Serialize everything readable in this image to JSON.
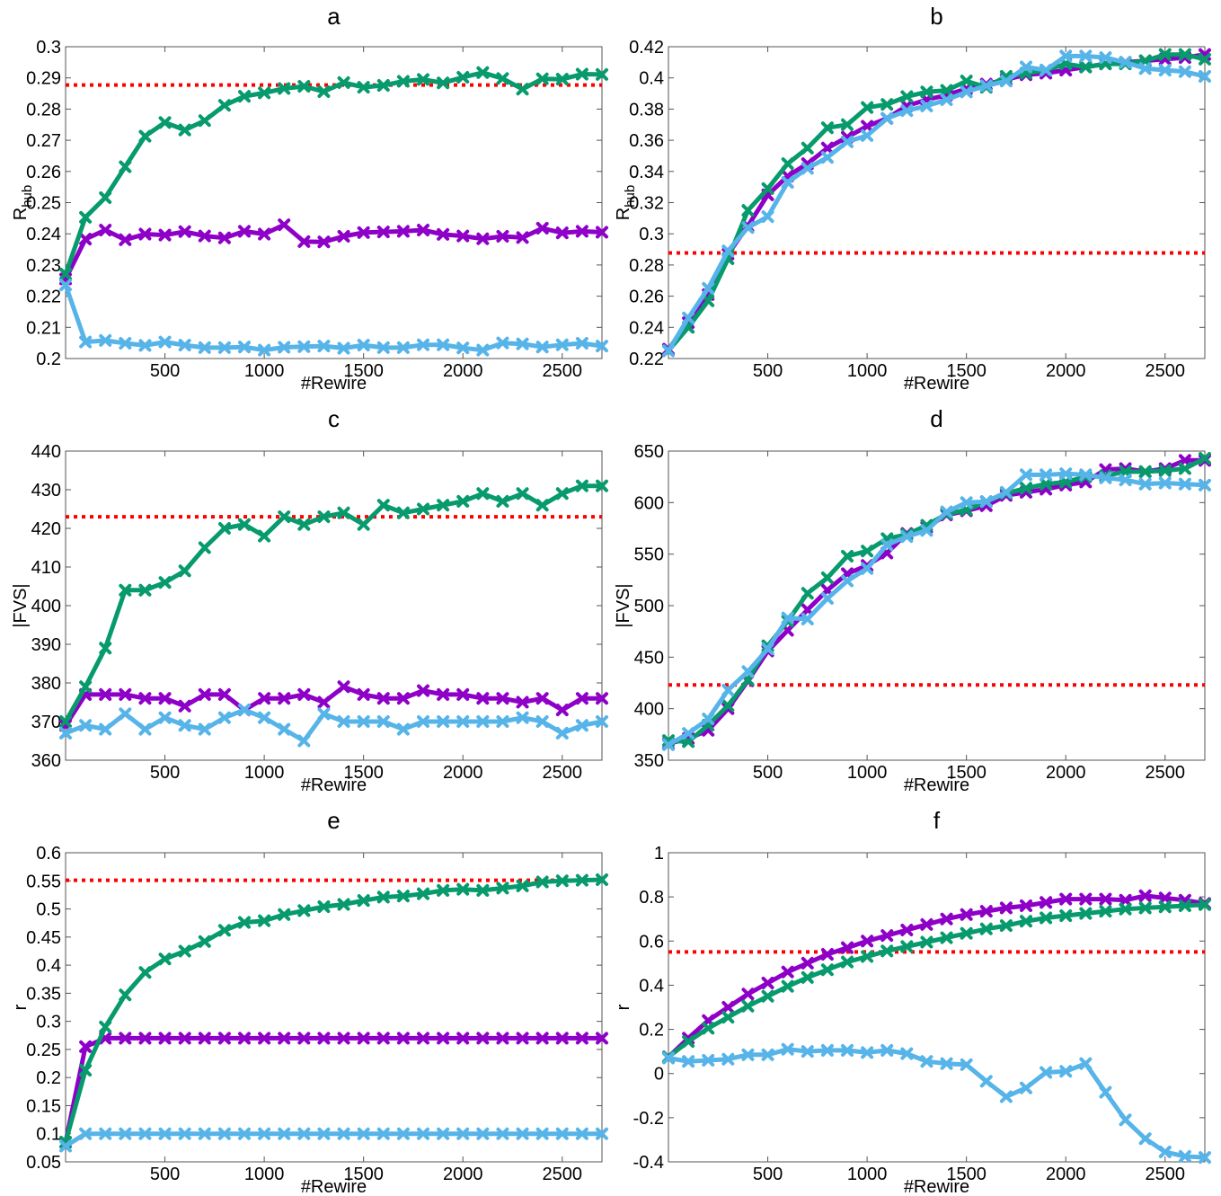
{
  "colors": {
    "purple": "#8e00c8",
    "green": "#069a6c",
    "blue": "#56b4e9",
    "reference": "#ff0000",
    "axis": "#555555"
  },
  "marker": "x-cross",
  "chart_data": [
    {
      "panel": "a",
      "type": "line",
      "title": "a",
      "xlabel": "#Rewire",
      "ylabel": "R_hub",
      "xlim": [
        0,
        2700
      ],
      "ylim": [
        0.2,
        0.3
      ],
      "xticks": [
        500,
        1000,
        1500,
        2000,
        2500
      ],
      "yticks": [
        0.2,
        0.21,
        0.22,
        0.23,
        0.24,
        0.25,
        0.26,
        0.27,
        0.28,
        0.29,
        0.3
      ],
      "xtick_labels": [
        "500",
        "1000",
        "1500",
        "2000",
        "2500"
      ],
      "ytick_labels": [
        "0.2",
        "0.21",
        "0.22",
        "0.23",
        "0.24",
        "0.25",
        "0.26",
        "0.27",
        "0.28",
        "0.29",
        "0.3"
      ],
      "reference": 0.2877,
      "x": [
        0,
        100,
        200,
        300,
        400,
        500,
        600,
        700,
        800,
        900,
        1000,
        1100,
        1200,
        1300,
        1400,
        1500,
        1600,
        1700,
        1800,
        1900,
        2000,
        2100,
        2200,
        2300,
        2400,
        2500,
        2600,
        2700
      ],
      "series": [
        {
          "color": "purple",
          "values": [
            0.2255,
            0.2383,
            0.2412,
            0.2381,
            0.2399,
            0.2396,
            0.2407,
            0.2393,
            0.2387,
            0.2408,
            0.2399,
            0.2429,
            0.2375,
            0.2374,
            0.2392,
            0.2404,
            0.2406,
            0.2408,
            0.2412,
            0.2398,
            0.2393,
            0.2384,
            0.2392,
            0.2388,
            0.2418,
            0.2403,
            0.2408,
            0.2405
          ]
        },
        {
          "color": "green",
          "values": [
            0.2271,
            0.2453,
            0.2516,
            0.2615,
            0.2713,
            0.2757,
            0.2733,
            0.2763,
            0.2812,
            0.2841,
            0.2852,
            0.2866,
            0.2873,
            0.2856,
            0.2885,
            0.287,
            0.2876,
            0.2889,
            0.2895,
            0.2884,
            0.2902,
            0.2917,
            0.2898,
            0.2864,
            0.2897,
            0.2896,
            0.2912,
            0.2911
          ]
        },
        {
          "color": "blue",
          "values": [
            0.2236,
            0.2053,
            0.2058,
            0.2049,
            0.2042,
            0.2053,
            0.2043,
            0.2035,
            0.2035,
            0.2037,
            0.2027,
            0.2036,
            0.2038,
            0.204,
            0.2033,
            0.2043,
            0.2035,
            0.2035,
            0.2044,
            0.2044,
            0.2034,
            0.2027,
            0.205,
            0.2047,
            0.2037,
            0.2044,
            0.2049,
            0.204
          ]
        }
      ]
    },
    {
      "panel": "b",
      "type": "line",
      "title": "b",
      "xlabel": "#Rewire",
      "ylabel": "R_hub",
      "xlim": [
        0,
        2700
      ],
      "ylim": [
        0.22,
        0.42
      ],
      "xticks": [
        500,
        1000,
        1500,
        2000,
        2500
      ],
      "yticks": [
        0.22,
        0.24,
        0.26,
        0.28,
        0.3,
        0.32,
        0.34,
        0.36,
        0.38,
        0.4,
        0.42
      ],
      "xtick_labels": [
        "500",
        "1000",
        "1500",
        "2000",
        "2500"
      ],
      "ytick_labels": [
        "0.22",
        "0.24",
        "0.26",
        "0.28",
        "0.3",
        "0.32",
        "0.34",
        "0.36",
        "0.38",
        "0.4",
        "0.42"
      ],
      "reference": 0.2877,
      "x": [
        0,
        100,
        200,
        300,
        400,
        500,
        600,
        700,
        800,
        900,
        1000,
        1100,
        1200,
        1300,
        1400,
        1500,
        1600,
        1700,
        1800,
        1900,
        2000,
        2100,
        2200,
        2300,
        2400,
        2500,
        2600,
        2700
      ],
      "series": [
        {
          "color": "purple",
          "values": [
            0.226,
            0.243,
            0.261,
            0.287,
            0.305,
            0.325,
            0.337,
            0.345,
            0.355,
            0.362,
            0.369,
            0.374,
            0.382,
            0.386,
            0.389,
            0.393,
            0.396,
            0.399,
            0.402,
            0.403,
            0.405,
            0.407,
            0.409,
            0.41,
            0.411,
            0.412,
            0.413,
            0.415
          ]
        },
        {
          "color": "green",
          "values": [
            0.225,
            0.24,
            0.257,
            0.284,
            0.315,
            0.329,
            0.345,
            0.355,
            0.368,
            0.37,
            0.381,
            0.383,
            0.388,
            0.391,
            0.392,
            0.398,
            0.394,
            0.401,
            0.403,
            0.405,
            0.409,
            0.407,
            0.409,
            0.409,
            0.411,
            0.415,
            0.415,
            0.412
          ]
        },
        {
          "color": "blue",
          "values": [
            0.225,
            0.246,
            0.265,
            0.289,
            0.304,
            0.311,
            0.333,
            0.342,
            0.349,
            0.359,
            0.363,
            0.374,
            0.379,
            0.382,
            0.386,
            0.391,
            0.395,
            0.398,
            0.407,
            0.405,
            0.414,
            0.414,
            0.413,
            0.41,
            0.406,
            0.405,
            0.404,
            0.401
          ]
        }
      ]
    },
    {
      "panel": "c",
      "type": "line",
      "title": "c",
      "xlabel": "#Rewire",
      "ylabel": "|FVS|",
      "xlim": [
        0,
        2700
      ],
      "ylim": [
        360,
        440
      ],
      "xticks": [
        500,
        1000,
        1500,
        2000,
        2500
      ],
      "yticks": [
        360,
        370,
        380,
        390,
        400,
        410,
        420,
        430,
        440
      ],
      "xtick_labels": [
        "500",
        "1000",
        "1500",
        "2000",
        "2500"
      ],
      "ytick_labels": [
        "360",
        "370",
        "380",
        "390",
        "400",
        "410",
        "420",
        "430",
        "440"
      ],
      "reference": 423,
      "x": [
        0,
        100,
        200,
        300,
        400,
        500,
        600,
        700,
        800,
        900,
        1000,
        1100,
        1200,
        1300,
        1400,
        1500,
        1600,
        1700,
        1800,
        1900,
        2000,
        2100,
        2200,
        2300,
        2400,
        2500,
        2600,
        2700
      ],
      "series": [
        {
          "color": "purple",
          "values": [
            369,
            377,
            377,
            377,
            376,
            376,
            374,
            377,
            377,
            373,
            376,
            376,
            377,
            375,
            379,
            377,
            376,
            376,
            378,
            377,
            377,
            376,
            376,
            375,
            376,
            373,
            376,
            376
          ]
        },
        {
          "color": "green",
          "values": [
            370,
            379,
            389,
            404,
            404,
            406,
            409,
            415,
            420,
            421,
            418,
            423,
            421,
            423,
            424,
            421,
            426,
            424,
            425,
            426,
            427,
            429,
            427,
            429,
            426,
            429,
            431,
            431
          ]
        },
        {
          "color": "blue",
          "values": [
            367,
            369,
            368,
            372,
            368,
            371,
            369,
            368,
            371,
            373,
            371,
            368,
            365,
            372,
            370,
            370,
            370,
            368,
            370,
            370,
            370,
            370,
            370,
            371,
            370,
            367,
            369,
            370
          ]
        }
      ]
    },
    {
      "panel": "d",
      "type": "line",
      "title": "d",
      "xlabel": "#Rewire",
      "ylabel": "|FVS|",
      "xlim": [
        0,
        2700
      ],
      "ylim": [
        350,
        650
      ],
      "xticks": [
        500,
        1000,
        1500,
        2000,
        2500
      ],
      "yticks": [
        350,
        400,
        450,
        500,
        550,
        600,
        650
      ],
      "xtick_labels": [
        "500",
        "1000",
        "1500",
        "2000",
        "2500"
      ],
      "ytick_labels": [
        "350",
        "400",
        "450",
        "500",
        "550",
        "600",
        "650"
      ],
      "reference": 423,
      "x": [
        0,
        100,
        200,
        300,
        400,
        500,
        600,
        700,
        800,
        900,
        1000,
        1100,
        1200,
        1300,
        1400,
        1500,
        1600,
        1700,
        1800,
        1900,
        2000,
        2100,
        2200,
        2300,
        2400,
        2500,
        2600,
        2700
      ],
      "series": [
        {
          "color": "purple",
          "values": [
            366,
            371,
            379,
            400,
            427,
            456,
            476,
            496,
            515,
            531,
            539,
            551,
            570,
            576,
            588,
            592,
            597,
            607,
            610,
            613,
            617,
            620,
            632,
            633,
            630,
            633,
            641,
            641
          ]
        },
        {
          "color": "green",
          "values": [
            369,
            368,
            384,
            403,
            428,
            461,
            485,
            512,
            527,
            548,
            553,
            565,
            569,
            578,
            589,
            593,
            601,
            609,
            614,
            618,
            620,
            625,
            626,
            630,
            630,
            631,
            633,
            643
          ]
        },
        {
          "color": "blue",
          "values": [
            365,
            376,
            390,
            418,
            436,
            458,
            488,
            487,
            507,
            524,
            536,
            559,
            567,
            573,
            591,
            600,
            601,
            610,
            627,
            627,
            628,
            627,
            624,
            622,
            618,
            619,
            618,
            617
          ]
        }
      ]
    },
    {
      "panel": "e",
      "type": "line",
      "title": "e",
      "xlabel": "#Rewire",
      "ylabel": "r",
      "xlim": [
        0,
        2700
      ],
      "ylim": [
        0.05,
        0.6
      ],
      "xticks": [
        500,
        1000,
        1500,
        2000,
        2500
      ],
      "yticks": [
        0.05,
        0.1,
        0.15,
        0.2,
        0.25,
        0.3,
        0.35,
        0.4,
        0.45,
        0.5,
        0.55,
        0.6
      ],
      "xtick_labels": [
        "500",
        "1000",
        "1500",
        "2000",
        "2500"
      ],
      "ytick_labels": [
        "0.05",
        "0.1",
        "0.15",
        "0.2",
        "0.25",
        "0.3",
        "0.35",
        "0.4",
        "0.45",
        "0.5",
        "0.55",
        "0.6"
      ],
      "reference": 0.551,
      "x": [
        0,
        100,
        200,
        300,
        400,
        500,
        600,
        700,
        800,
        900,
        1000,
        1100,
        1200,
        1300,
        1400,
        1500,
        1600,
        1700,
        1800,
        1900,
        2000,
        2100,
        2200,
        2300,
        2400,
        2500,
        2600,
        2700
      ],
      "series": [
        {
          "color": "purple",
          "values": [
            0.085,
            0.255,
            0.27,
            0.27,
            0.27,
            0.27,
            0.27,
            0.27,
            0.27,
            0.27,
            0.27,
            0.27,
            0.27,
            0.27,
            0.27,
            0.27,
            0.27,
            0.27,
            0.27,
            0.27,
            0.27,
            0.27,
            0.27,
            0.27,
            0.27,
            0.27,
            0.27,
            0.27
          ]
        },
        {
          "color": "green",
          "values": [
            0.085,
            0.213,
            0.29,
            0.347,
            0.387,
            0.411,
            0.425,
            0.442,
            0.462,
            0.476,
            0.479,
            0.49,
            0.497,
            0.504,
            0.508,
            0.515,
            0.521,
            0.523,
            0.527,
            0.533,
            0.535,
            0.533,
            0.537,
            0.541,
            0.548,
            0.55,
            0.551,
            0.552
          ]
        },
        {
          "color": "blue",
          "values": [
            0.078,
            0.1,
            0.1,
            0.1,
            0.1,
            0.1,
            0.1,
            0.1,
            0.1,
            0.1,
            0.1,
            0.1,
            0.1,
            0.1,
            0.1,
            0.1,
            0.1,
            0.1,
            0.1,
            0.1,
            0.1,
            0.1,
            0.1,
            0.1,
            0.1,
            0.1,
            0.1,
            0.1
          ]
        }
      ]
    },
    {
      "panel": "f",
      "type": "line",
      "title": "f",
      "xlabel": "#Rewire",
      "ylabel": "r",
      "xlim": [
        0,
        2700
      ],
      "ylim": [
        -0.4,
        1
      ],
      "xticks": [
        500,
        1000,
        1500,
        2000,
        2500
      ],
      "yticks": [
        -0.4,
        -0.2,
        0,
        0.2,
        0.4,
        0.6,
        0.8,
        1
      ],
      "xtick_labels": [
        "500",
        "1000",
        "1500",
        "2000",
        "2500"
      ],
      "ytick_labels": [
        "-0.4",
        "-0.2",
        "0",
        "0.2",
        "0.4",
        "0.6",
        "0.8",
        "1"
      ],
      "reference": 0.551,
      "x": [
        0,
        100,
        200,
        300,
        400,
        500,
        600,
        700,
        800,
        900,
        1000,
        1100,
        1200,
        1300,
        1400,
        1500,
        1600,
        1700,
        1800,
        1900,
        2000,
        2100,
        2200,
        2300,
        2400,
        2500,
        2600,
        2700
      ],
      "series": [
        {
          "color": "purple",
          "values": [
            0.075,
            0.16,
            0.24,
            0.3,
            0.36,
            0.41,
            0.46,
            0.5,
            0.54,
            0.57,
            0.6,
            0.625,
            0.65,
            0.675,
            0.7,
            0.72,
            0.735,
            0.75,
            0.76,
            0.775,
            0.79,
            0.79,
            0.79,
            0.785,
            0.805,
            0.795,
            0.785,
            0.77
          ]
        },
        {
          "color": "green",
          "values": [
            0.075,
            0.145,
            0.205,
            0.255,
            0.305,
            0.35,
            0.395,
            0.435,
            0.47,
            0.505,
            0.53,
            0.555,
            0.575,
            0.595,
            0.615,
            0.635,
            0.655,
            0.67,
            0.69,
            0.705,
            0.715,
            0.725,
            0.735,
            0.745,
            0.75,
            0.755,
            0.76,
            0.765
          ]
        },
        {
          "color": "blue",
          "values": [
            0.07,
            0.055,
            0.06,
            0.065,
            0.085,
            0.085,
            0.11,
            0.1,
            0.105,
            0.105,
            0.095,
            0.105,
            0.09,
            0.055,
            0.045,
            0.04,
            -0.035,
            -0.105,
            -0.065,
            0.005,
            0.01,
            0.045,
            -0.085,
            -0.21,
            -0.295,
            -0.355,
            -0.375,
            -0.38
          ]
        }
      ]
    }
  ]
}
